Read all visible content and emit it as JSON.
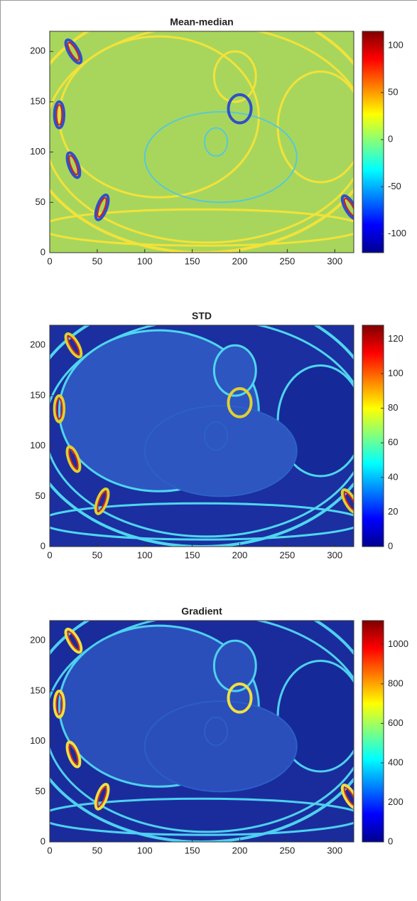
{
  "chart_data": [
    {
      "type": "heatmap",
      "title": "Mean-median",
      "colormap": "jet",
      "xlim": [
        0,
        320
      ],
      "ylim": [
        0,
        220
      ],
      "xticks": [
        0,
        50,
        100,
        150,
        200,
        250,
        300
      ],
      "yticks": [
        0,
        50,
        100,
        150,
        200
      ],
      "clim": [
        -120,
        115
      ],
      "cticks": [
        -100,
        -50,
        0,
        50,
        100
      ]
    },
    {
      "type": "heatmap",
      "title": "STD",
      "colormap": "jet",
      "xlim": [
        0,
        320
      ],
      "ylim": [
        0,
        220
      ],
      "xticks": [
        0,
        50,
        100,
        150,
        200,
        250,
        300
      ],
      "yticks": [
        0,
        50,
        100,
        150,
        200
      ],
      "clim": [
        0,
        128
      ],
      "cticks": [
        0,
        20,
        40,
        60,
        80,
        100,
        120
      ]
    },
    {
      "type": "heatmap",
      "title": "Gradient",
      "colormap": "jet",
      "xlim": [
        0,
        320
      ],
      "ylim": [
        0,
        220
      ],
      "xticks": [
        0,
        50,
        100,
        150,
        200,
        250,
        300
      ],
      "yticks": [
        0,
        50,
        100,
        150,
        200
      ],
      "clim": [
        0,
        1120
      ],
      "cticks": [
        0,
        200,
        400,
        600,
        800,
        1000
      ]
    }
  ]
}
